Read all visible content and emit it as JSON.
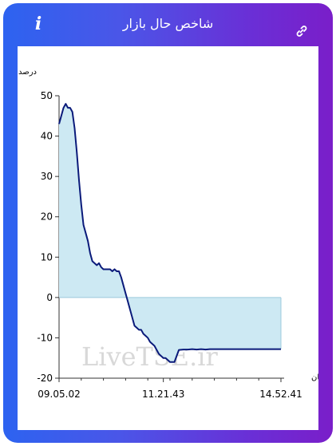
{
  "header": {
    "title": "شاخص حال بازار",
    "info_icon": "info-icon",
    "link_icon": "link-icon"
  },
  "colors": {
    "gradient_start": "#2d63f0",
    "gradient_end": "#7a1ec9",
    "line": "#0a1a7a",
    "fill": "#cde9f3"
  },
  "chart_data": {
    "type": "area",
    "ylabel": "درصد",
    "xlabel": "زمان",
    "ylim": [
      -20,
      50
    ],
    "yticks": [
      50,
      40,
      30,
      20,
      10,
      0,
      -10,
      -20
    ],
    "xtick_labels": [
      "09.05.02",
      "11.21.43",
      "14.52.41"
    ],
    "watermark": "LiveTSE.ir",
    "series": [
      {
        "t": [
          0,
          0.01,
          0.02,
          0.03,
          0.04,
          0.05,
          0.06,
          0.07,
          0.08,
          0.09,
          0.1,
          0.11,
          0.12,
          0.13,
          0.14,
          0.15,
          0.16,
          0.17,
          0.18,
          0.19,
          0.2,
          0.21,
          0.22,
          0.23,
          0.24,
          0.25,
          0.26,
          0.27,
          0.28,
          0.29,
          0.3,
          0.31,
          0.32,
          0.33,
          0.34,
          0.35,
          0.36,
          0.37,
          0.38,
          0.39,
          0.4,
          0.41,
          0.42,
          0.43,
          0.44,
          0.45,
          0.46,
          0.47,
          0.48,
          0.49,
          0.5,
          0.52,
          0.54,
          0.56,
          0.58,
          0.6,
          0.62,
          0.64,
          0.66,
          0.68,
          0.7,
          0.75,
          0.8,
          0.85,
          0.9,
          0.95,
          1.0
        ],
        "values": [
          43,
          45,
          47,
          48,
          47,
          47,
          46,
          42,
          36,
          29,
          23,
          18,
          16,
          14,
          11,
          9,
          8.5,
          8,
          8.5,
          7.5,
          7,
          7,
          7,
          7,
          6.5,
          7,
          6.5,
          6.5,
          5,
          3,
          1,
          -1,
          -3,
          -5,
          -7,
          -7.5,
          -8,
          -8,
          -9,
          -9.5,
          -10,
          -11,
          -11.5,
          -12,
          -13,
          -14,
          -14.5,
          -15,
          -15,
          -15.5,
          -16,
          -16,
          -13,
          -12.9,
          -12.9,
          -12.8,
          -12.9,
          -12.8,
          -12.9,
          -12.8,
          -12.8,
          -12.8,
          -12.8,
          -12.8,
          -12.8,
          -12.8,
          -12.8
        ]
      }
    ]
  }
}
